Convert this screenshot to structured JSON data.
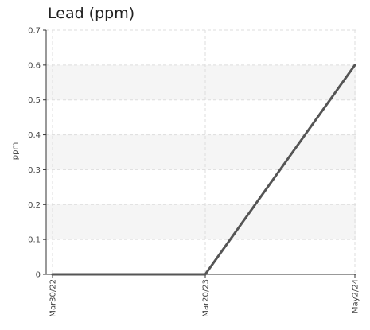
{
  "chart_data": {
    "type": "line",
    "title": "Lead (ppm)",
    "xlabel": "",
    "ylabel": "ppm",
    "x": [
      "Mar30/22",
      "Mar20/23",
      "May2/24"
    ],
    "series": [
      {
        "values": [
          0,
          0,
          0.6
        ]
      }
    ],
    "ylim": [
      0,
      0.7
    ],
    "yticks": [
      "0",
      "0.1",
      "0.2",
      "0.3",
      "0.4",
      "0.5",
      "0.6",
      "0.7"
    ],
    "grid": true,
    "line_color": "#555555",
    "band_color": "#f5f5f5",
    "grid_color": "#dddddd"
  }
}
